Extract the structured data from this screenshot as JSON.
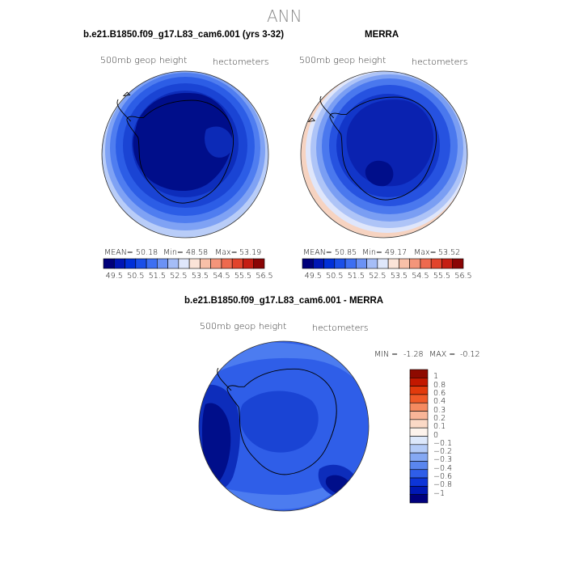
{
  "page": {
    "main_title": "ANN"
  },
  "chart_data": [
    {
      "type": "heatmap",
      "title": "b.e21.B1850.f09_g17.L83_cam6.001 (yrs 3-32)",
      "left_label": "500mb geop height",
      "right_label": "hectometers",
      "stats": {
        "mean_label": "MEAN=",
        "mean": "50.18",
        "min_label": "Min=",
        "min": "48.58",
        "max_label": "Max=",
        "max": "53.19"
      },
      "colorbar_ticks": [
        "49.5",
        "50.5",
        "51.5",
        "52.5",
        "53.5",
        "54.5",
        "55.5",
        "56.5"
      ],
      "colorbar_colors": [
        "#00007a",
        "#0016b5",
        "#0030d8",
        "#1a4fe8",
        "#3d6ff2",
        "#6b92f5",
        "#a5bdf7",
        "#dfe7fb",
        "#fbe4d8",
        "#f8c0a8",
        "#f4957a",
        "#ee6a4f",
        "#e2442c",
        "#c51e13",
        "#8a0505"
      ]
    },
    {
      "type": "heatmap",
      "title": "MERRA",
      "left_label": "500mb geop height",
      "right_label": "hectometers",
      "stats": {
        "mean_label": "MEAN=",
        "mean": "50.85",
        "min_label": "Min=",
        "min": "49.17",
        "max_label": "Max=",
        "max": "53.52"
      },
      "colorbar_ticks": [
        "49.5",
        "50.5",
        "51.5",
        "52.5",
        "53.5",
        "54.5",
        "55.5",
        "56.5"
      ],
      "colorbar_colors": [
        "#00007a",
        "#0016b5",
        "#0030d8",
        "#1a4fe8",
        "#3d6ff2",
        "#6b92f5",
        "#a5bdf7",
        "#dfe7fb",
        "#fbe4d8",
        "#f8c0a8",
        "#f4957a",
        "#ee6a4f",
        "#e2442c",
        "#c51e13",
        "#8a0505"
      ]
    },
    {
      "type": "heatmap",
      "title": "b.e21.B1850.f09_g17.L83_cam6.001 - MERRA",
      "left_label": "500mb geop height",
      "right_label": "hectometers",
      "stats": {
        "min_label": "MIN =",
        "min": "-1.28",
        "max_label": "MAX =",
        "max": "-0.12"
      },
      "colorbar_ticks": [
        "1",
        "0.8",
        "0.6",
        "0.4",
        "0.3",
        "0.2",
        "0.1",
        "0",
        "−0.1",
        "−0.2",
        "−0.3",
        "−0.4",
        "−0.6",
        "−0.8",
        "−1"
      ],
      "colorbar_colors": [
        "#8e0a00",
        "#c21800",
        "#e23a0c",
        "#f05a28",
        "#f58a60",
        "#f8b598",
        "#fbd9c6",
        "#fdf3ec",
        "#dde8fb",
        "#b4cbf7",
        "#85a8f3",
        "#5a86ee",
        "#2f5ee8",
        "#0d35d8",
        "#0018b4",
        "#00007d"
      ]
    }
  ]
}
